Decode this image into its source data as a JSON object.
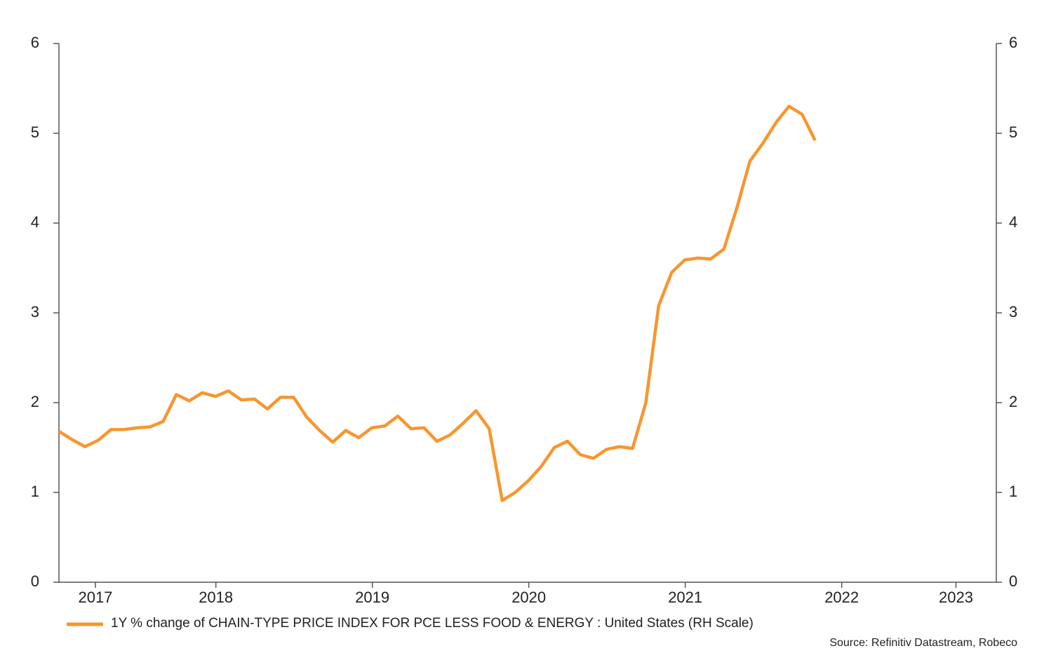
{
  "chart_data": {
    "type": "line",
    "x": [
      2017.417,
      2017.5,
      2017.583,
      2017.667,
      2017.75,
      2017.833,
      2017.917,
      2018.0,
      2018.083,
      2018.167,
      2018.25,
      2018.333,
      2018.417,
      2018.5,
      2018.583,
      2018.667,
      2018.75,
      2018.833,
      2018.917,
      2019.0,
      2019.083,
      2019.167,
      2019.25,
      2019.333,
      2019.417,
      2019.5,
      2019.583,
      2019.667,
      2019.75,
      2019.833,
      2019.917,
      2020.0,
      2020.083,
      2020.167,
      2020.25,
      2020.333,
      2020.417,
      2020.5,
      2020.583,
      2020.667,
      2020.75,
      2020.833,
      2020.917,
      2021.0,
      2021.083,
      2021.167,
      2021.25,
      2021.333,
      2021.417,
      2021.5,
      2021.583,
      2021.667,
      2021.75,
      2021.833,
      2021.917,
      2022.0,
      2022.083,
      2022.167,
      2022.25
    ],
    "series": [
      {
        "name": "1Y % change of CHAIN-TYPE PRICE INDEX FOR PCE LESS FOOD & ENERGY : United States (RH Scale)",
        "color": "#f7962f",
        "axis": "y2",
        "values": [
          1.68,
          1.59,
          1.51,
          1.58,
          1.7,
          1.7,
          1.72,
          1.73,
          1.79,
          2.09,
          2.02,
          2.11,
          2.07,
          2.13,
          2.03,
          2.04,
          1.93,
          2.06,
          2.06,
          1.84,
          1.69,
          1.56,
          1.69,
          1.61,
          1.72,
          1.74,
          1.85,
          1.71,
          1.72,
          1.57,
          1.64,
          1.77,
          1.91,
          1.71,
          0.91,
          1.0,
          1.13,
          1.29,
          1.5,
          1.57,
          1.42,
          1.38,
          1.48,
          1.51,
          1.49,
          1.99,
          3.08,
          3.45,
          3.59,
          3.61,
          3.6,
          3.71,
          4.17,
          4.69,
          4.89,
          5.12,
          5.3,
          5.21,
          4.92
        ]
      }
    ],
    "xlim": [
      2017.417,
      2023.408
    ],
    "xticks": [
      {
        "value": 2017.65,
        "label": "2017"
      },
      {
        "value": 2018.42,
        "label": "2018"
      },
      {
        "value": 2019.42,
        "label": "2019"
      },
      {
        "value": 2020.42,
        "label": "2020"
      },
      {
        "value": 2021.42,
        "label": "2021"
      },
      {
        "value": 2022.42,
        "label": "2022"
      },
      {
        "value": 2023.15,
        "label": "2023"
      }
    ],
    "ylim": [
      0,
      6
    ],
    "yticks": [
      0,
      1,
      2,
      3,
      4,
      5,
      6
    ],
    "y2lim": [
      0,
      6
    ],
    "y2ticks": [
      0,
      1,
      2,
      3,
      4,
      5,
      6
    ],
    "source": "Source: Refinitiv Datastream, Robeco"
  }
}
